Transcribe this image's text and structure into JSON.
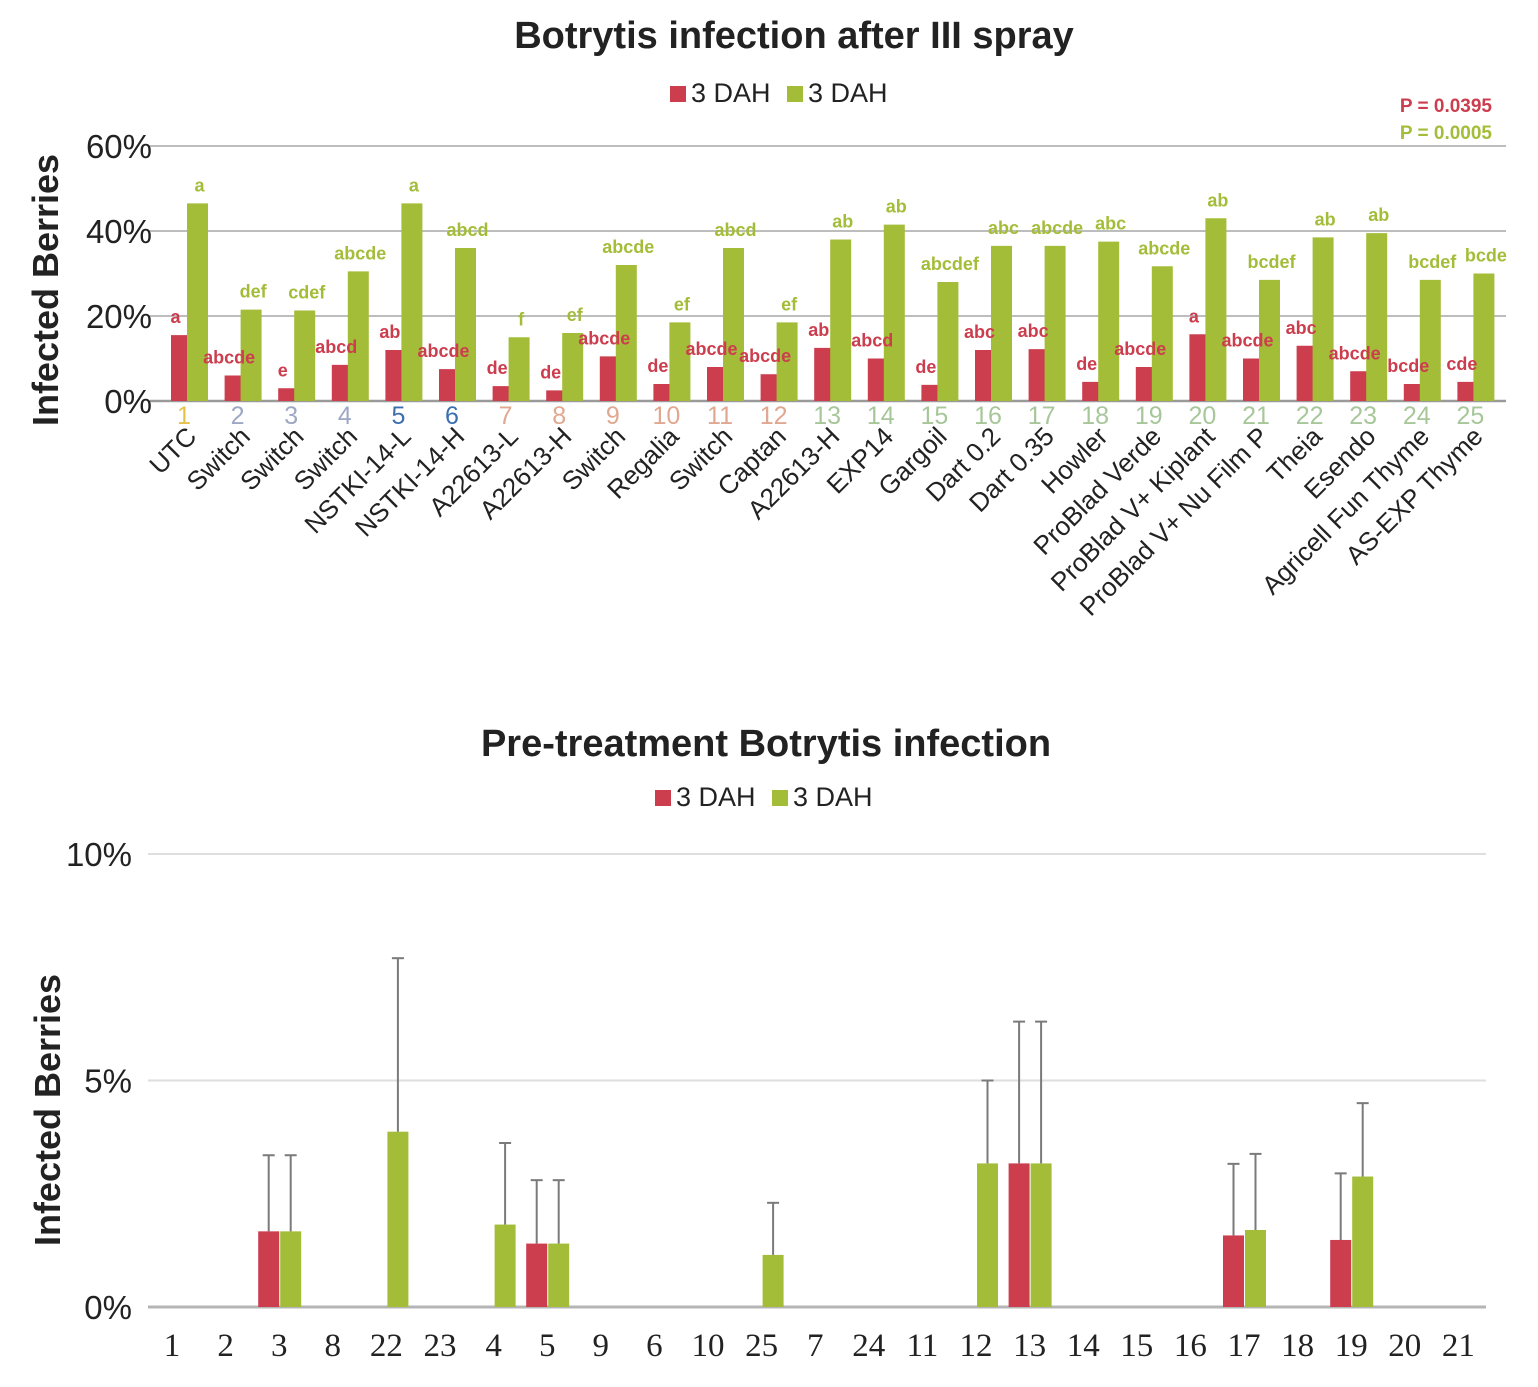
{
  "colors": {
    "red": "#cc3d4e",
    "green": "#a3bd39",
    "grid": "#bdbdbd",
    "text": "#222222",
    "error": "#7a7a7a"
  },
  "chart_data": [
    {
      "type": "bar",
      "title": "Botrytis infection after III spray",
      "ylabel": "Infected Berries",
      "ylim": [
        0,
        60
      ],
      "yticks": [
        "0%",
        "20%",
        "40%",
        "60%"
      ],
      "legend": [
        "3 DAH",
        "3 DAH"
      ],
      "legend_position": "top-center",
      "grid": true,
      "p_values": [
        "P = 0.0395",
        "P = 0.0005"
      ],
      "category_numbers": [
        "1",
        "2",
        "3",
        "4",
        "5",
        "6",
        "7",
        "8",
        "9",
        "10",
        "11",
        "12",
        "13",
        "14",
        "15",
        "16",
        "17",
        "18",
        "19",
        "20",
        "21",
        "22",
        "23",
        "24",
        "25"
      ],
      "category_number_colors": [
        "#e6c14a",
        "#9ea8c4",
        "#9ea8c4",
        "#9ea8c4",
        "#3b6fb0",
        "#3b6fb0",
        "#e0a890",
        "#e0a890",
        "#e0a890",
        "#e0a890",
        "#e0a890",
        "#e0a890",
        "#a7c79a",
        "#a7c79a",
        "#a7c79a",
        "#a7c79a",
        "#a7c79a",
        "#a7c79a",
        "#a7c79a",
        "#a7c79a",
        "#a7c79a",
        "#a7c79a",
        "#a7c79a",
        "#a7c79a",
        "#a7c79a"
      ],
      "categories": [
        "UTC",
        "Switch",
        "Switch",
        "Switch",
        "NSTKI-14-L",
        "NSTKI-14-H",
        "A22613-L",
        "A22613-H",
        "Switch",
        "Regalia",
        "Switch",
        "Captan",
        "A22613-H",
        "EXP14",
        "Gargoil",
        "Dart 0.2",
        "Dart 0.35",
        "Howler",
        "ProBlad Verde",
        "ProBlad V+ Kiplant",
        "ProBlad V+ Nu Film P",
        "Theia",
        "Esendo",
        "Agricell Fun Thyme",
        "AS-EXP Thyme"
      ],
      "series": [
        {
          "name": "3 DAH",
          "color": "#cc3d4e",
          "values": [
            15.5,
            6,
            3,
            8.5,
            12,
            7.5,
            3.5,
            2.5,
            10.5,
            4,
            8,
            6.3,
            12.5,
            10,
            3.8,
            12,
            12.2,
            4.5,
            8,
            15.7,
            10,
            13,
            7,
            4,
            4.5
          ],
          "letters": [
            "a",
            "abcde",
            "e",
            "abcd",
            "ab",
            "abcde",
            "de",
            "de",
            "abcde",
            "de",
            "abcde",
            "abcde",
            "ab",
            "abcd",
            "de",
            "abc",
            "abc",
            "de",
            "abcde",
            "a",
            "abcde",
            "abc",
            "abcde",
            "bcde",
            "cde"
          ]
        },
        {
          "name": "3 DAH",
          "color": "#a3bd39",
          "values": [
            46.5,
            21.5,
            21.3,
            30.5,
            46.5,
            36,
            15,
            16,
            32,
            18.5,
            36,
            18.5,
            38,
            41.5,
            28,
            36.5,
            36.5,
            37.5,
            31.7,
            43,
            28.5,
            38.5,
            39.5,
            28.5,
            30
          ],
          "letters": [
            "a",
            "def",
            "cdef",
            "abcde",
            "a",
            "abcd",
            "f",
            "ef",
            "abcde",
            "ef",
            "abcd",
            "ef",
            "ab",
            "ab",
            "abcdef",
            "abc",
            "abcde",
            "abc",
            "abcde",
            "ab",
            "bcdef",
            "ab",
            "ab",
            "bcdef",
            "bcde"
          ]
        }
      ]
    },
    {
      "type": "bar",
      "title": "Pre-treatment Botrytis infection",
      "ylabel": "Infected Berries",
      "ylim": [
        0,
        10
      ],
      "yticks": [
        "0%",
        "5%",
        "10%"
      ],
      "legend": [
        "3 DAH",
        "3 DAH"
      ],
      "legend_position": "top-center",
      "grid": true,
      "categories": [
        "1",
        "2",
        "3",
        "8",
        "22",
        "23",
        "4",
        "5",
        "9",
        "6",
        "10",
        "25",
        "7",
        "24",
        "11",
        "12",
        "13",
        "14",
        "15",
        "16",
        "17",
        "18",
        "19",
        "20",
        "21"
      ],
      "series": [
        {
          "name": "3 DAH",
          "color": "#cc3d4e",
          "values": [
            0,
            0,
            1.67,
            0,
            0,
            0,
            0,
            1.4,
            0,
            0,
            0,
            0,
            0,
            0,
            0,
            0,
            3.17,
            0,
            0,
            0,
            1.58,
            0,
            1.48,
            0,
            0
          ],
          "error": [
            0,
            0,
            1.68,
            0,
            0,
            0,
            0,
            1.4,
            0,
            0,
            0,
            0,
            0,
            0,
            0,
            0,
            3.13,
            0,
            0,
            0,
            1.58,
            0,
            1.47,
            0,
            0
          ]
        },
        {
          "name": "3 DAH",
          "color": "#a3bd39",
          "values": [
            0,
            0,
            1.67,
            0,
            3.87,
            0,
            1.82,
            1.4,
            0,
            0,
            0,
            1.15,
            0,
            0,
            0,
            3.17,
            3.17,
            0,
            0,
            0,
            1.7,
            0,
            2.88,
            0,
            0
          ],
          "error": [
            0,
            0,
            1.68,
            0,
            3.83,
            0,
            1.8,
            1.4,
            0,
            0,
            0,
            1.15,
            0,
            0,
            0,
            1.83,
            3.13,
            0,
            0,
            0,
            1.68,
            0,
            1.62,
            0,
            0
          ]
        }
      ]
    }
  ]
}
